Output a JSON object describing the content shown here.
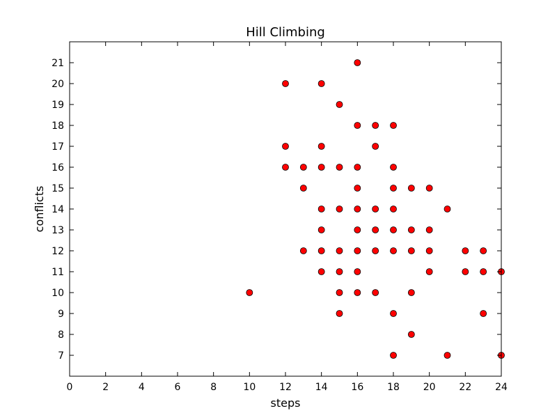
{
  "chart_data": {
    "type": "scatter",
    "title": "Hill Climbing",
    "xlabel": "steps",
    "ylabel": "conflicts",
    "xlim": [
      0,
      24
    ],
    "ylim": [
      6,
      22
    ],
    "xticks": [
      0,
      2,
      4,
      6,
      8,
      10,
      12,
      14,
      16,
      18,
      20,
      22,
      24
    ],
    "yticks": [
      7,
      8,
      9,
      10,
      11,
      12,
      13,
      14,
      15,
      16,
      17,
      18,
      19,
      20,
      21
    ],
    "grid": false,
    "marker_color": "#ff0000",
    "marker_edge_color": "#000000",
    "points": [
      [
        10,
        10
      ],
      [
        12,
        20
      ],
      [
        12,
        17
      ],
      [
        12,
        16
      ],
      [
        13,
        16
      ],
      [
        13,
        15
      ],
      [
        13,
        12
      ],
      [
        14,
        20
      ],
      [
        14,
        17
      ],
      [
        14,
        16
      ],
      [
        14,
        14
      ],
      [
        14,
        13
      ],
      [
        14,
        12
      ],
      [
        14,
        11
      ],
      [
        15,
        19
      ],
      [
        15,
        16
      ],
      [
        15,
        14
      ],
      [
        15,
        12
      ],
      [
        15,
        11
      ],
      [
        15,
        10
      ],
      [
        15,
        9
      ],
      [
        16,
        21
      ],
      [
        16,
        18
      ],
      [
        16,
        16
      ],
      [
        16,
        15
      ],
      [
        16,
        14
      ],
      [
        16,
        13
      ],
      [
        16,
        12
      ],
      [
        16,
        11
      ],
      [
        16,
        10
      ],
      [
        17,
        18
      ],
      [
        17,
        17
      ],
      [
        17,
        14
      ],
      [
        17,
        13
      ],
      [
        17,
        12
      ],
      [
        17,
        10
      ],
      [
        18,
        18
      ],
      [
        18,
        16
      ],
      [
        18,
        15
      ],
      [
        18,
        14
      ],
      [
        18,
        13
      ],
      [
        18,
        12
      ],
      [
        18,
        9
      ],
      [
        18,
        7
      ],
      [
        19,
        15
      ],
      [
        19,
        13
      ],
      [
        19,
        12
      ],
      [
        19,
        10
      ],
      [
        19,
        8
      ],
      [
        20,
        15
      ],
      [
        20,
        13
      ],
      [
        20,
        12
      ],
      [
        20,
        11
      ],
      [
        21,
        14
      ],
      [
        21,
        7
      ],
      [
        22,
        12
      ],
      [
        22,
        11
      ],
      [
        23,
        12
      ],
      [
        23,
        11
      ],
      [
        23,
        9
      ],
      [
        24,
        11
      ],
      [
        24,
        7
      ]
    ]
  }
}
